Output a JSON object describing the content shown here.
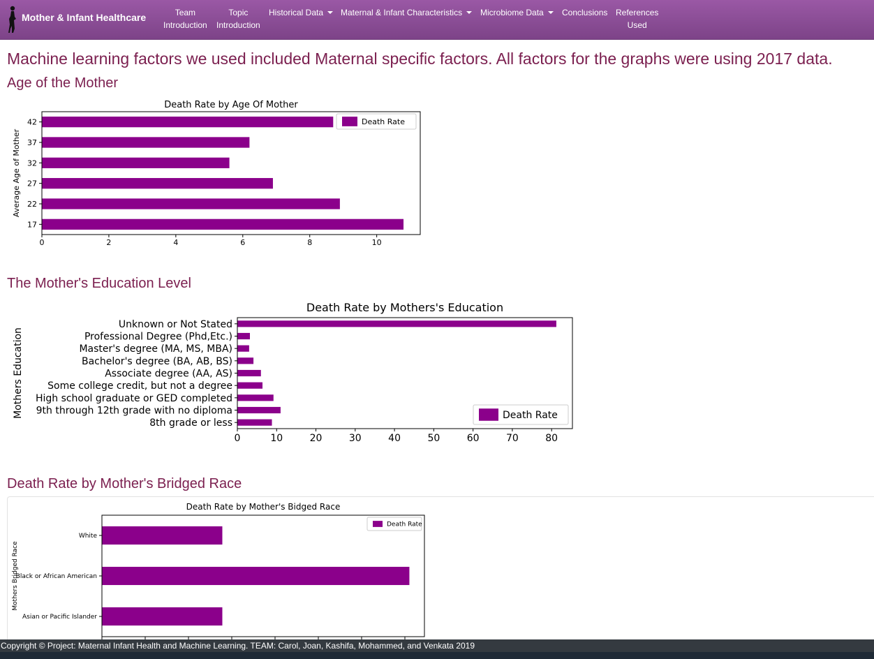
{
  "navbar": {
    "brand": "Mother & Infant Healthcare",
    "items": [
      {
        "label": "Team Introduction",
        "line1": "Team",
        "line2": "Introduction",
        "dropdown": false
      },
      {
        "label": "Topic Introduction",
        "line1": "Topic",
        "line2": "Introduction",
        "dropdown": false
      },
      {
        "label": "Historical Data",
        "dropdown": true
      },
      {
        "label": "Maternal & Infant Characteristics",
        "dropdown": true
      },
      {
        "label": "Microbiome Data",
        "dropdown": true
      },
      {
        "label": "Conclusions",
        "dropdown": false
      },
      {
        "label": "References Used",
        "line1": "References",
        "line2": "Used",
        "dropdown": false
      }
    ]
  },
  "main": {
    "heading": "Machine learning factors we used included Maternal specific factors. All factors for the graphs were using 2017 data.",
    "sections": [
      {
        "heading": "Age of the Mother"
      },
      {
        "heading": "The Mother's Education Level"
      },
      {
        "heading": "Death Rate by Mother's Bridged Race"
      }
    ]
  },
  "colors": {
    "bar": "#8b008b",
    "heading": "#7b1f4f",
    "navbar": "#8a4d95",
    "footer": "#343a40"
  },
  "chart_data": [
    {
      "type": "bar",
      "orientation": "horizontal",
      "title": "Death Rate by Age Of Mother",
      "ylabel": "Average Age of Mother",
      "xlabel": "",
      "categories": [
        "17",
        "22",
        "27",
        "32",
        "37",
        "42"
      ],
      "series": [
        {
          "name": "Death Rate",
          "values": [
            10.8,
            8.9,
            6.9,
            5.6,
            6.2,
            8.7
          ]
        }
      ],
      "xlim": [
        0,
        11.3
      ],
      "xticks": [
        0,
        2,
        4,
        6,
        8,
        10
      ],
      "legend": "top-right"
    },
    {
      "type": "bar",
      "orientation": "horizontal",
      "title": "Death Rate by Mothers's Education",
      "ylabel": "Mothers Education",
      "xlabel": "",
      "categories": [
        "8th grade or less",
        "9th through 12th grade with no diploma",
        "High school graduate or GED completed",
        "Some college credit, but not a degree",
        "Associate degree (AA, AS)",
        "Bachelor's degree (BA, AB, BS)",
        "Master's degree (MA, MS, MBA)",
        "Professional Degree (Phd,Etc.)",
        "Unknown or Not Stated"
      ],
      "series": [
        {
          "name": "Death Rate",
          "values": [
            8.8,
            11.0,
            9.2,
            6.4,
            6.0,
            4.1,
            3.0,
            3.2,
            81.2
          ]
        }
      ],
      "xlim": [
        0,
        85.3
      ],
      "xticks": [
        0,
        10,
        20,
        30,
        40,
        50,
        60,
        70,
        80
      ],
      "legend": "bottom-right"
    },
    {
      "type": "bar",
      "orientation": "horizontal",
      "title": "Death Rate by Mother's Bidged Race",
      "ylabel": "Mothers Bridged Race",
      "xlabel": "",
      "categories": [
        "Asian or Pacific Islander",
        "Black or African American",
        "White"
      ],
      "series": [
        {
          "name": "Death Rate",
          "values": [
            5.6,
            14.3,
            5.6
          ]
        }
      ],
      "xlim": [
        0,
        15
      ],
      "legend": "top-right"
    }
  ],
  "footer": {
    "text": "Copyright © Project: Maternal Infant Health and Machine Learning. TEAM: Carol, Joan, Kashifa, Mohammed, and Venkata 2019"
  }
}
